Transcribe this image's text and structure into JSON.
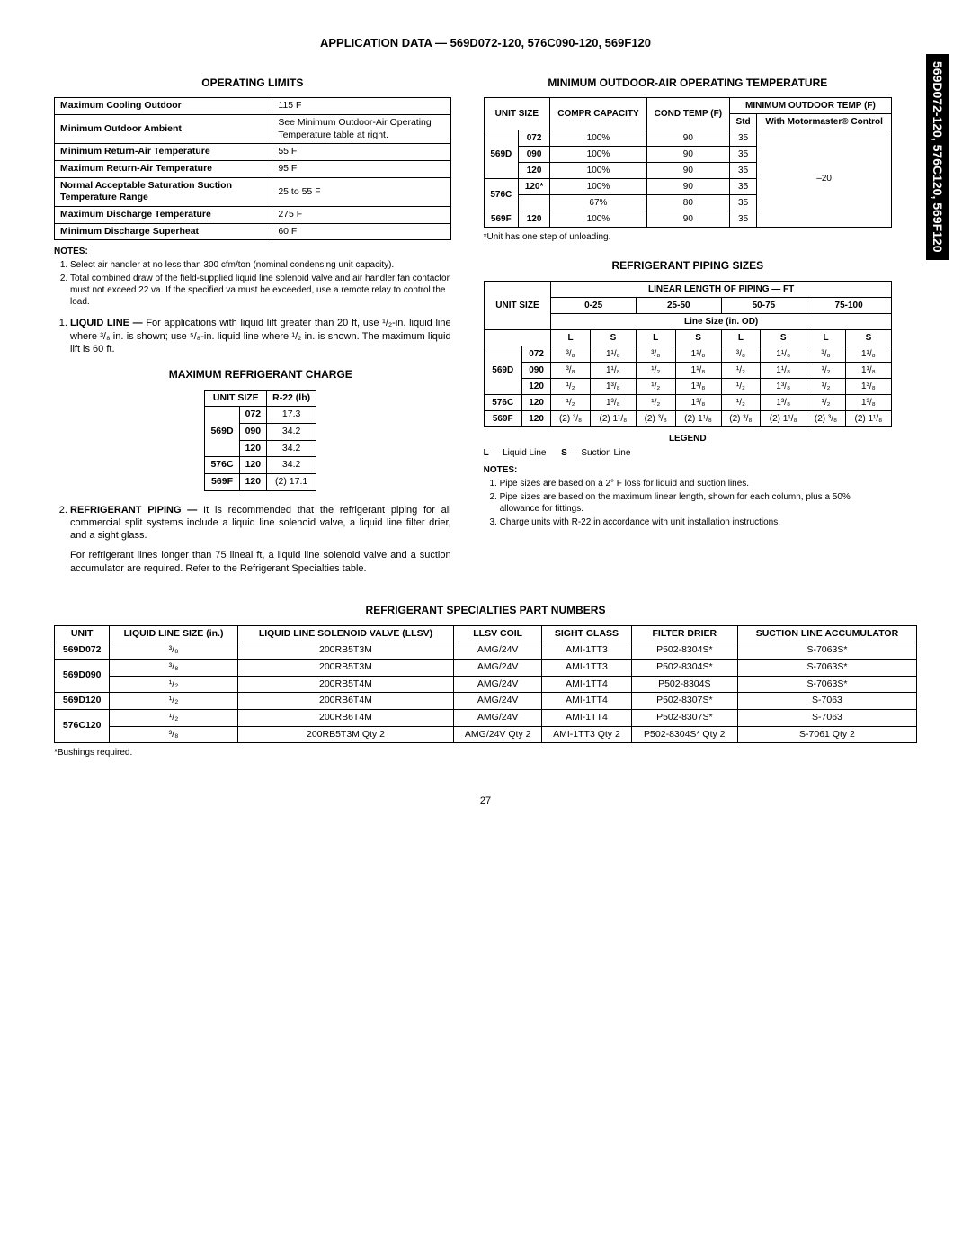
{
  "page_title": "APPLICATION DATA — 569D072-120, 576C090-120, 569F120",
  "side_tab": "569D072-120, 576C120, 569F120",
  "page_number": "27",
  "operating_limits": {
    "title": "OPERATING LIMITS",
    "rows": [
      [
        "Maximum Cooling Outdoor",
        "115 F"
      ],
      [
        "Minimum Outdoor Ambient",
        "See Minimum Outdoor-Air Operating Temperature table at right."
      ],
      [
        "Minimum Return-Air Temperature",
        "55 F"
      ],
      [
        "Maximum Return-Air Temperature",
        "95 F"
      ],
      [
        "Normal Acceptable Saturation Suction Temperature Range",
        "25 to 55 F"
      ],
      [
        "Maximum Discharge Temperature",
        "275 F"
      ],
      [
        "Minimum Discharge  Superheat",
        "60 F"
      ]
    ],
    "notes_hdr": "NOTES:",
    "notes": [
      "Select air handler at no less than 300 cfm/ton (nominal condensing unit capacity).",
      "Total combined draw of the field-supplied liquid line solenoid valve and air handler fan contactor must not exceed 22 va. If the specified va must be exceeded, use a remote relay to control the load."
    ]
  },
  "body_list": {
    "item1_label": "LIQUID LINE —",
    "item1_text": " For applications with liquid lift greater than 20 ft, use ¹/₂-in. liquid line where ³/₈ in. is shown; use ⁵/₈-in. liquid line where ¹/₂ in. is shown. The maximum liquid lift is 60 ft.",
    "item2_label": "REFRIGERANT PIPING —",
    "item2_text": " It is recommended that the refrigerant piping for all commercial split systems include a liquid line solenoid valve, a liquid line filter drier, and a sight glass.",
    "item2_extra": "For refrigerant lines longer than 75 lineal ft, a liquid line solenoid valve and a suction accumulator are required. Refer to the Refrigerant Specialties table."
  },
  "max_charge": {
    "title": "MAXIMUM REFRIGERANT CHARGE",
    "headers": [
      "UNIT SIZE",
      "R-22 (lb)"
    ],
    "rows": [
      {
        "unit": "569D",
        "sizes": [
          "072",
          "090",
          "120"
        ],
        "vals": [
          "17.3",
          "34.2",
          "34.2"
        ]
      },
      {
        "unit": "576C",
        "sizes": [
          "120"
        ],
        "vals": [
          "34.2"
        ]
      },
      {
        "unit": "569F",
        "sizes": [
          "120"
        ],
        "vals": [
          "(2) 17.1"
        ]
      }
    ]
  },
  "min_outdoor": {
    "title": "MINIMUM OUTDOOR-AIR OPERATING TEMPERATURE",
    "h_unit": "UNIT SIZE",
    "h_compr": "COMPR CAPACITY",
    "h_cond": "COND TEMP (F)",
    "h_min": "MINIMUM OUTDOOR TEMP (F)",
    "h_std": "Std",
    "h_mm": "With Motormaster® Control",
    "rows": [
      {
        "u": "569D",
        "s": "072",
        "c": "100%",
        "t": "90",
        "std": "35"
      },
      {
        "u": "",
        "s": "090",
        "c": "100%",
        "t": "90",
        "std": "35"
      },
      {
        "u": "",
        "s": "120",
        "c": "100%",
        "t": "90",
        "std": "35"
      },
      {
        "u": "576C",
        "s": "120*",
        "c": "100%",
        "t": "90",
        "std": "35"
      },
      {
        "u": "",
        "s": "",
        "c": "67%",
        "t": "80",
        "std": "35"
      },
      {
        "u": "569F",
        "s": "120",
        "c": "100%",
        "t": "90",
        "std": "35"
      }
    ],
    "mm_val": "–20",
    "footnote": "*Unit has one step of unloading."
  },
  "piping": {
    "title": "REFRIGERANT PIPING SIZES",
    "h_unit": "UNIT SIZE",
    "h_linear": "LINEAR LENGTH OF PIPING — FT",
    "ranges": [
      "0-25",
      "25-50",
      "50-75",
      "75-100"
    ],
    "h_linesize": "Line Size (in. OD)",
    "h_L": "L",
    "h_S": "S",
    "rows": [
      {
        "u": "569D",
        "s": "072",
        "d": [
          "³/₈",
          "1¹/₈",
          "³/₈",
          "1¹/₈",
          "³/₈",
          "1¹/₈",
          "³/₈",
          "1¹/₈"
        ]
      },
      {
        "u": "",
        "s": "090",
        "d": [
          "³/₈",
          "1¹/₈",
          "¹/₂",
          "1¹/₈",
          "¹/₂",
          "1¹/₈",
          "¹/₂",
          "1¹/₈"
        ]
      },
      {
        "u": "",
        "s": "120",
        "d": [
          "¹/₂",
          "1³/₈",
          "¹/₂",
          "1³/₈",
          "¹/₂",
          "1³/₈",
          "¹/₂",
          "1³/₈"
        ]
      },
      {
        "u": "576C",
        "s": "120",
        "d": [
          "¹/₂",
          "1³/₈",
          "¹/₂",
          "1³/₈",
          "¹/₂",
          "1³/₈",
          "¹/₂",
          "1³/₈"
        ]
      },
      {
        "u": "569F",
        "s": "120",
        "d": [
          "(2) ³/₈",
          "(2) 1¹/₈",
          "(2) ³/₈",
          "(2) 1¹/₈",
          "(2) ³/₈",
          "(2) 1¹/₈",
          "(2) ³/₈",
          "(2) 1¹/₈"
        ]
      }
    ],
    "legend_hdr": "LEGEND",
    "legend_L_lbl": "L —",
    "legend_L_txt": " Liquid Line",
    "legend_S_lbl": "S —",
    "legend_S_txt": " Suction Line",
    "notes_hdr": "NOTES:",
    "notes": [
      "Pipe sizes are based on a 2° F loss for liquid and suction lines.",
      "Pipe sizes are based on the maximum linear length, shown for each column, plus a 50% allowance for fittings.",
      "Charge units with R-22 in accordance with unit installation instructions."
    ]
  },
  "specialties": {
    "title": "REFRIGERANT SPECIALTIES PART NUMBERS",
    "headers": [
      "UNIT",
      "LIQUID LINE SIZE (in.)",
      "LIQUID LINE SOLENOID VALVE (LLSV)",
      "LLSV COIL",
      "SIGHT GLASS",
      "FILTER DRIER",
      "SUCTION LINE ACCUMULATOR"
    ],
    "rows": [
      [
        "569D072",
        "³/₈",
        "200RB5T3M",
        "AMG/24V",
        "AMI-1TT3",
        "P502-8304S*",
        "S-7063S*"
      ],
      [
        "569D090",
        "³/₈",
        "200RB5T3M",
        "AMG/24V",
        "AMI-1TT3",
        "P502-8304S*",
        "S-7063S*"
      ],
      [
        "",
        "¹/₂",
        "200RB5T4M",
        "AMG/24V",
        "AMI-1TT4",
        "P502-8304S",
        "S-7063S*"
      ],
      [
        "569D120",
        "¹/₂",
        "200RB6T4M",
        "AMG/24V",
        "AMI-1TT4",
        "P502-8307S*",
        "S-7063"
      ],
      [
        "576C120",
        "¹/₂",
        "200RB6T4M",
        "AMG/24V",
        "AMI-1TT4",
        "P502-8307S*",
        "S-7063"
      ],
      [
        "",
        "³/₈",
        "200RB5T3M Qty 2",
        "AMG/24V Qty 2",
        "AMI-1TT3 Qty 2",
        "P502-8304S* Qty 2",
        "S-7061 Qty 2"
      ]
    ],
    "footnote": "*Bushings required."
  }
}
